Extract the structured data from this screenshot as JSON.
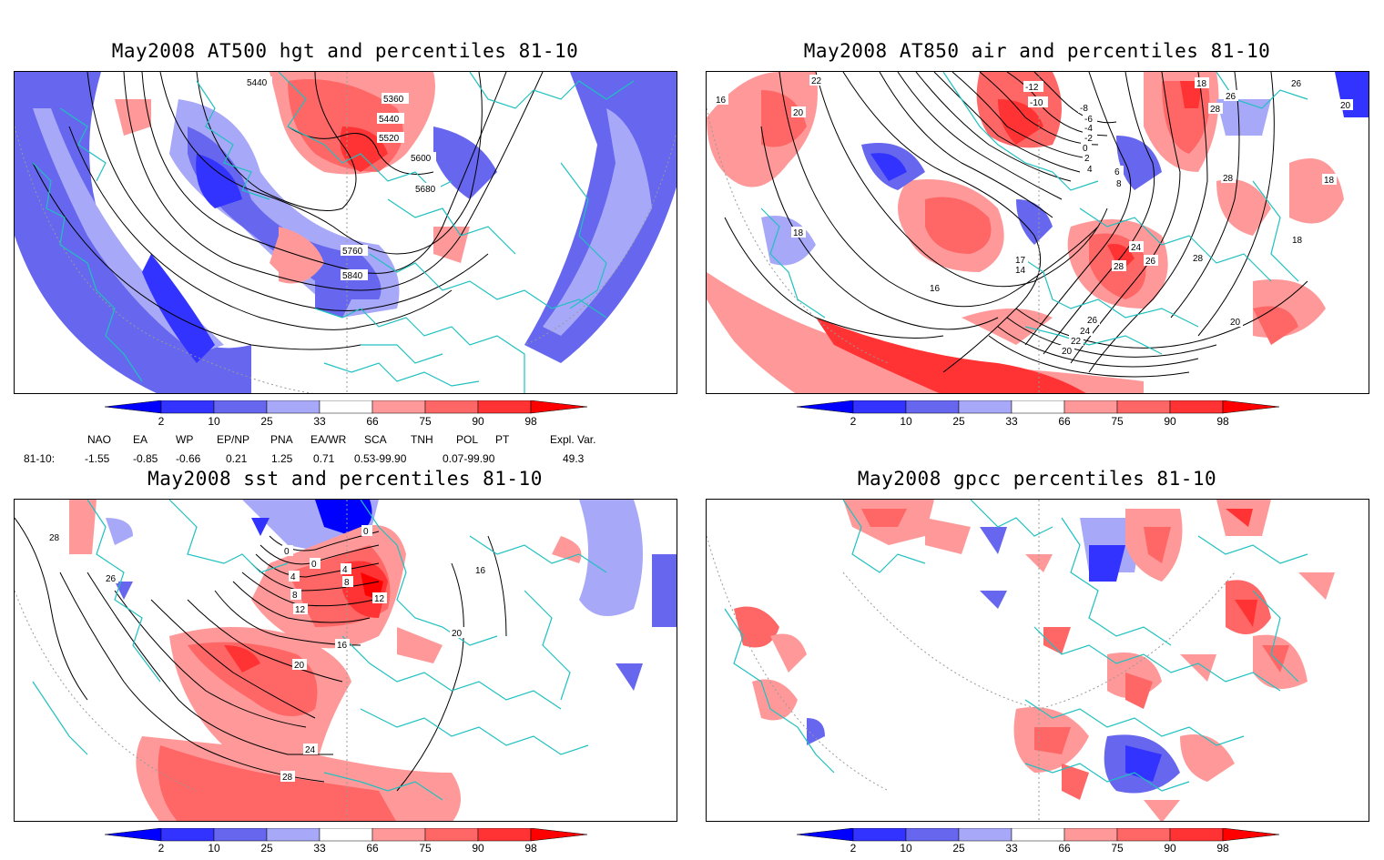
{
  "panels": [
    {
      "id": "hgt",
      "title": "May2008 AT500 hgt and percentiles 81-10",
      "contour_labels": [
        "5440",
        "5360",
        "5440",
        "5520",
        "5600",
        "5680",
        "5760",
        "5840"
      ]
    },
    {
      "id": "air",
      "title": "May2008 AT850 air and percentiles 81-10",
      "contour_labels": [
        "22",
        "16",
        "20",
        "18",
        "-12",
        "-10",
        "-8",
        "-6",
        "-4",
        "-2",
        "0",
        "2",
        "4",
        "6",
        "8",
        "18",
        "26",
        "28",
        "26",
        "20",
        "18",
        "28",
        "24",
        "28",
        "26",
        "28",
        "17",
        "14",
        "16",
        "26",
        "24",
        "22",
        "20",
        "20",
        "18"
      ]
    },
    {
      "id": "sst",
      "title": "May2008 sst and percentiles 81-10",
      "contour_labels": [
        "28",
        "26",
        "0",
        "0",
        "4",
        "4",
        "8",
        "12",
        "8",
        "12",
        "16",
        "20",
        "24",
        "28",
        "16",
        "20",
        "0"
      ]
    },
    {
      "id": "gpcc",
      "title": "May2008 gpcc percentiles 81-10",
      "contour_labels": []
    }
  ],
  "colorbar": {
    "ticks": [
      "2",
      "10",
      "25",
      "33",
      "66",
      "75",
      "90",
      "98"
    ],
    "colors": {
      "below2": "#0000ff",
      "c2_10": "#3333ff",
      "c10_25": "#6666ee",
      "c25_33": "#a8a8f8",
      "c33_66": "#ffffff",
      "c66_75": "#ff9999",
      "c75_90": "#ff6666",
      "c90_98": "#ff3333",
      "above98": "#ff0000"
    }
  },
  "indices": {
    "headers": [
      "NAO",
      "EA",
      "WP",
      "EP/NP",
      "PNA",
      "EA/WR",
      "SCA",
      "TNH",
      "POL",
      "PT",
      "Expl. Var."
    ],
    "row_label": "81-10:",
    "values": [
      "-1.55",
      "-0.85",
      "-0.66",
      "0.21",
      "1.25",
      "0.71",
      "0.53-99.90",
      "",
      "0.07-99.90",
      "",
      "49.3"
    ]
  },
  "map_colors": {
    "coast": "#20c0c0",
    "contour": "#000000",
    "grid": "#999999"
  }
}
